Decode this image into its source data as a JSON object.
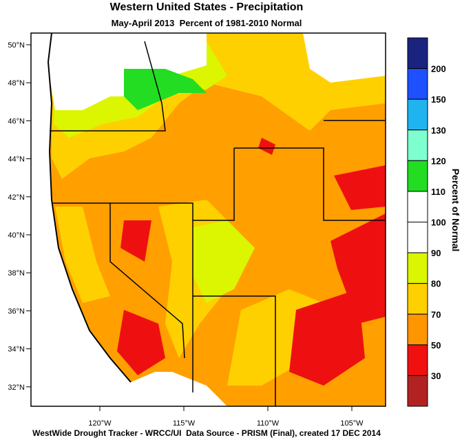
{
  "header": {
    "title": "Western United States - Precipitation",
    "subtitle": "May-April 2013  Percent of 1981-2010 Normal"
  },
  "map": {
    "lat_labels": [
      "50°N",
      "48°N",
      "46°N",
      "44°N",
      "42°N",
      "40°N",
      "38°N",
      "36°N",
      "34°N",
      "32°N"
    ],
    "lon_labels": [
      "120°W",
      "115°W",
      "110°W",
      "105°W"
    ]
  },
  "colorbar": {
    "title": "Percent of Normal",
    "labels": [
      "200",
      "150",
      "130",
      "120",
      "110",
      "100",
      "90",
      "80",
      "70",
      "50",
      "30"
    ],
    "colors": [
      "#1a237e",
      "#1e50ff",
      "#1fb4f0",
      "#7fffd0",
      "#22dd22",
      "#ffffff",
      "#ffffff",
      "#dcf500",
      "#ffd000",
      "#ff9500",
      "#f01010",
      "#b22222"
    ]
  },
  "footer": {
    "text": "WestWide Drought Tracker - WRCC/UI  Data Source - PRISM (Final), created 17 DEC 2014"
  }
}
